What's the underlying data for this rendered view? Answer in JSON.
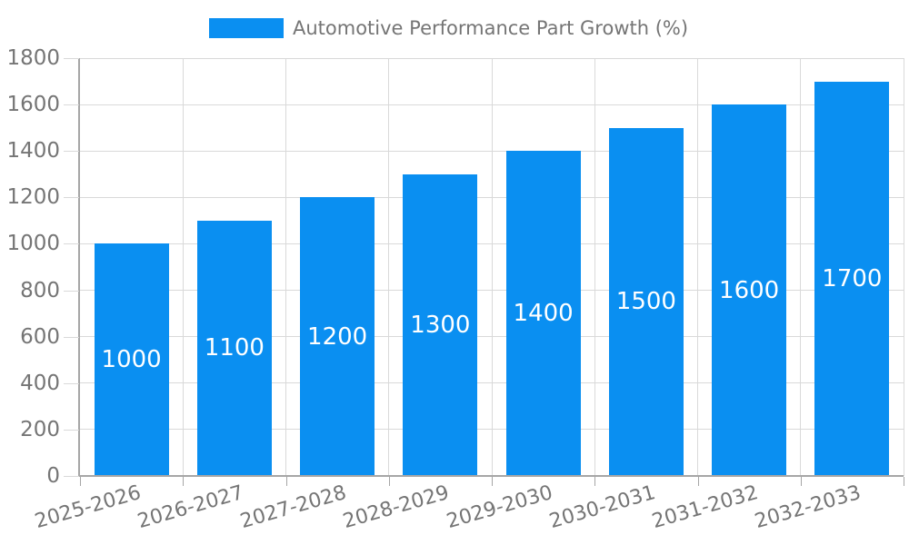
{
  "chart_data": {
    "type": "bar",
    "title": "",
    "legend": "Automotive Performance Part Growth (%)",
    "legend_position": "top-center",
    "categories": [
      "2025-2026",
      "2026-2027",
      "2027-2028",
      "2028-2029",
      "2029-2030",
      "2030-2031",
      "2031-2032",
      "2032-2033"
    ],
    "values": [
      1000,
      1100,
      1200,
      1300,
      1400,
      1500,
      1600,
      1700
    ],
    "xlabel": "",
    "ylabel": "",
    "ylim": [
      0,
      1800
    ],
    "yticks": [
      0,
      200,
      400,
      600,
      800,
      1000,
      1200,
      1400,
      1600,
      1800
    ],
    "grid": true,
    "bar_value_labels": "inside-center",
    "xtick_rotation_deg": -16,
    "colors": {
      "bar": "#0A8FF1",
      "bar_label_text": "#FFFFFF",
      "axis_text": "#757575",
      "grid_line": "#D9D9D9",
      "axis_line": "#A6A6A6",
      "background": "#FFFFFF"
    }
  }
}
